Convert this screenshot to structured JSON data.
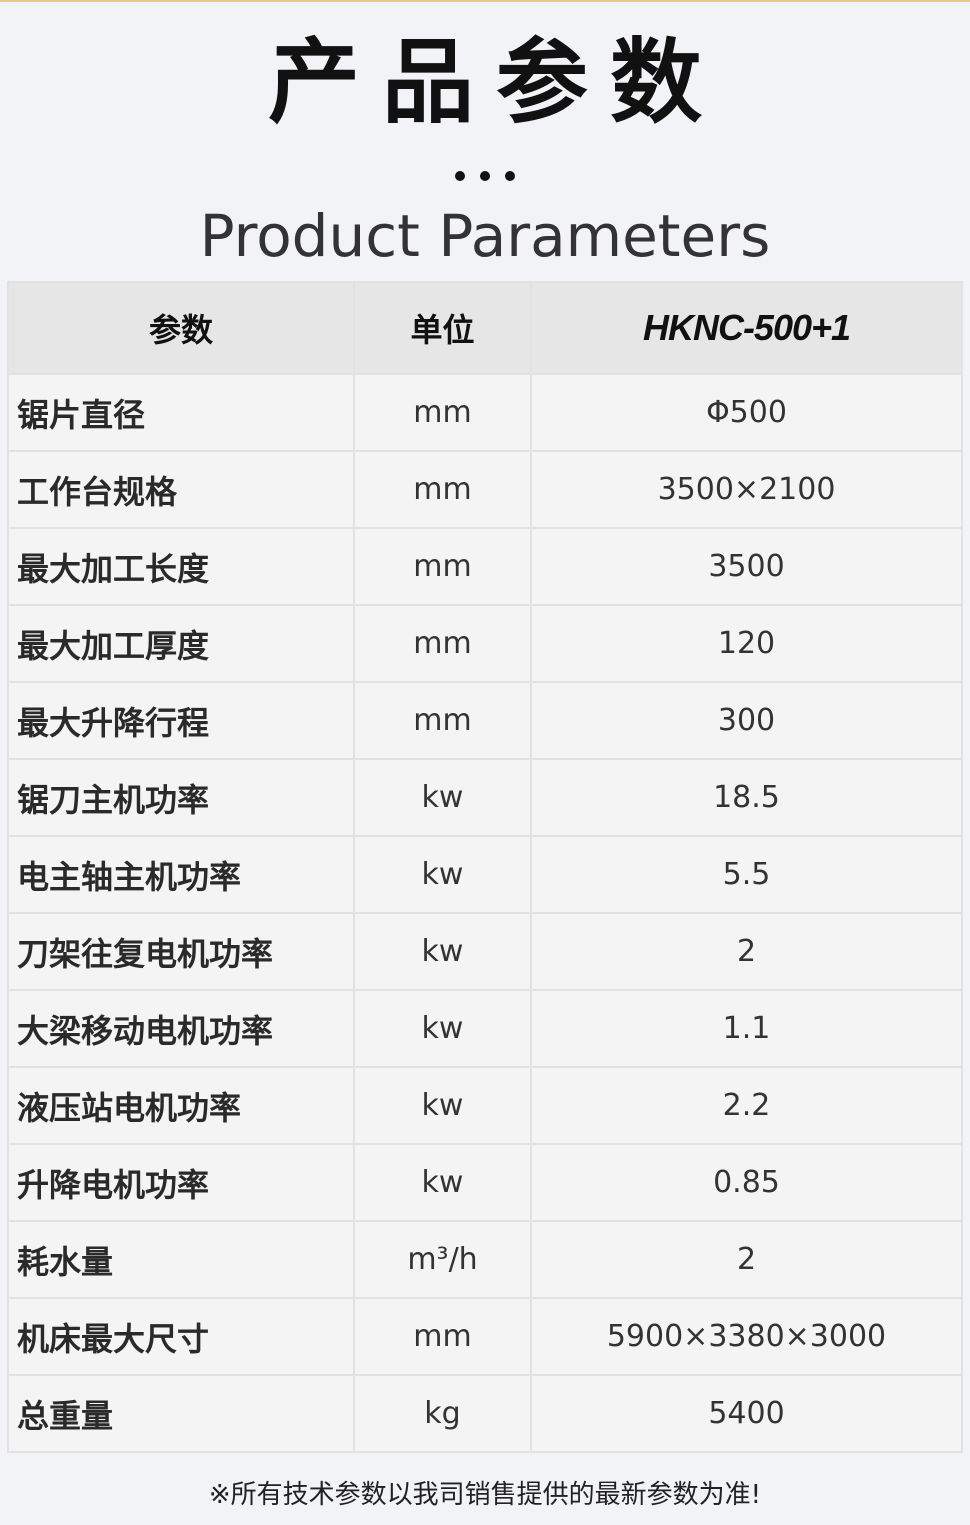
{
  "title_cn": "产品参数",
  "title_en": "Product Parameters",
  "table": {
    "headers": [
      "参数",
      "单位",
      "HKNC-500+1"
    ],
    "rows": [
      [
        "锯片直径",
        "mm",
        "Φ500"
      ],
      [
        "工作台规格",
        "mm",
        "3500×2100"
      ],
      [
        "最大加工长度",
        "mm",
        "3500"
      ],
      [
        "最大加工厚度",
        "mm",
        "120"
      ],
      [
        "最大升降行程",
        "mm",
        "300"
      ],
      [
        "锯刀主机功率",
        "kw",
        "18.5"
      ],
      [
        "电主轴主机功率",
        "kw",
        "5.5"
      ],
      [
        "刀架往复电机功率",
        "kw",
        "2"
      ],
      [
        "大梁移动电机功率",
        "kw",
        "1.1"
      ],
      [
        "液压站电机功率",
        "kw",
        "2.2"
      ],
      [
        "升降电机功率",
        "kw",
        "0.85"
      ],
      [
        "耗水量",
        "m³/h",
        "2"
      ],
      [
        "机床最大尺寸",
        "mm",
        "5900×3380×3000"
      ],
      [
        "总重量",
        "kg",
        "5400"
      ]
    ]
  },
  "note": "※所有技术参数以我司销售提供的最新参数为准!"
}
